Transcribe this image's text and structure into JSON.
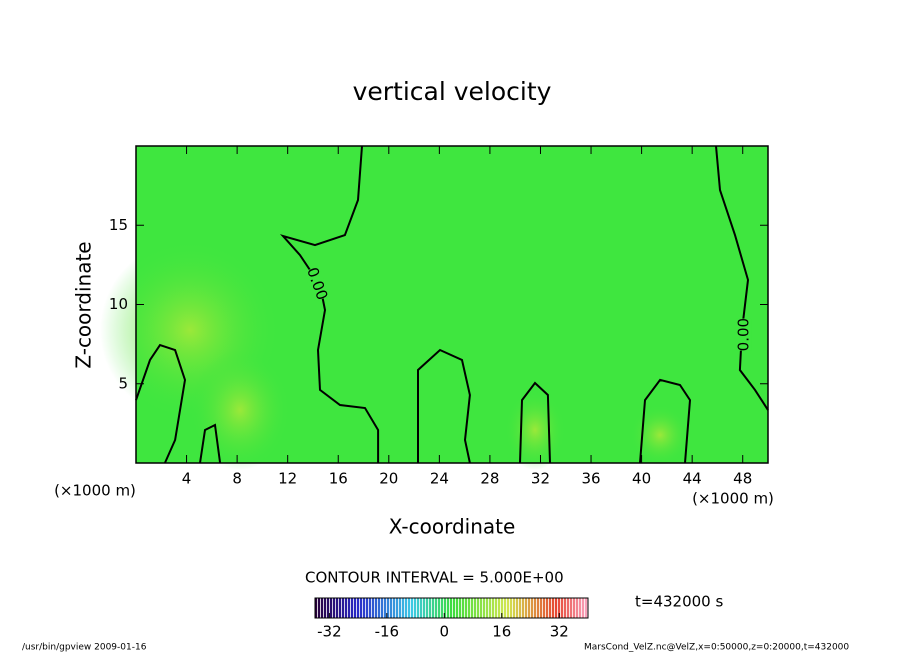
{
  "chart_data": {
    "type": "contour",
    "title": "vertical velocity",
    "xlabel": "X-coordinate",
    "ylabel": "Z-coordinate",
    "x_unit": "(×1000 m)",
    "y_unit": "(×1000 m)",
    "xlim": [
      0,
      50
    ],
    "ylim": [
      0,
      20
    ],
    "xticks": [
      4,
      8,
      12,
      16,
      20,
      24,
      28,
      32,
      36,
      40,
      44,
      48
    ],
    "yticks": [
      5,
      10,
      15
    ],
    "field_color": "#3fe63f",
    "line_color": "#000000",
    "contours": [
      {
        "x": [
          17.88,
          17.56,
          16.53,
          14.16,
          11.63,
          12.97,
          14.56,
          14.95,
          14.4,
          14.56,
          16.14,
          18.12,
          19.15,
          19.15
        ],
        "z": [
          20,
          16.59,
          14.38,
          13.75,
          14.32,
          13.12,
          11.23,
          9.65,
          7.13,
          4.61,
          3.66,
          3.47,
          2.08,
          0
        ]
      },
      {
        "x": [
          0,
          1.11,
          1.9,
          3.09,
          3.88,
          3.09,
          2.29
        ],
        "z": [
          3.97,
          6.5,
          7.44,
          7.13,
          5.24,
          1.45,
          0
        ]
      },
      {
        "x": [
          45.89,
          46.2,
          47.39,
          48.42,
          47.94,
          47.78,
          48.97,
          50
        ],
        "z": [
          20,
          17.22,
          14.38,
          11.55,
          8.39,
          5.87,
          4.61,
          3.34
        ]
      },
      {
        "x": [
          22.31,
          22.31,
          24.05,
          25.79,
          26.42,
          26.03,
          26.42
        ],
        "z": [
          0,
          5.87,
          7.13,
          6.5,
          4.29,
          1.45,
          0
        ]
      },
      {
        "x": [
          30.38,
          30.54,
          31.57,
          32.59,
          32.75
        ],
        "z": [
          0,
          3.97,
          5.05,
          4.29,
          0
        ]
      },
      {
        "x": [
          39.87,
          40.27,
          41.46,
          43.04,
          43.83,
          43.43
        ],
        "z": [
          0,
          3.97,
          5.24,
          4.92,
          3.97,
          0
        ]
      },
      {
        "x": [
          5.06,
          5.46,
          6.25,
          6.65
        ],
        "z": [
          0,
          2.08,
          2.4,
          0
        ]
      }
    ],
    "contour_labels": [
      {
        "label": "0.00",
        "x": 14.3,
        "z": 11.3,
        "angle": 70
      },
      {
        "label": "0.00",
        "x": 48.1,
        "z": 8.1,
        "angle": -90
      }
    ],
    "contour_interval": "CONTOUR INTERVAL = 5.000E+00",
    "time": "t=432000 s",
    "colorbar": {
      "lim": [
        -36,
        40
      ],
      "ticks": [
        -32,
        -16,
        0,
        16,
        32
      ]
    },
    "footer_left": "/usr/bin/gpview   2009-01-16",
    "footer_right": "MarsCond_VelZ.nc@VelZ,x=0:50000,z=0:20000,t=432000"
  }
}
